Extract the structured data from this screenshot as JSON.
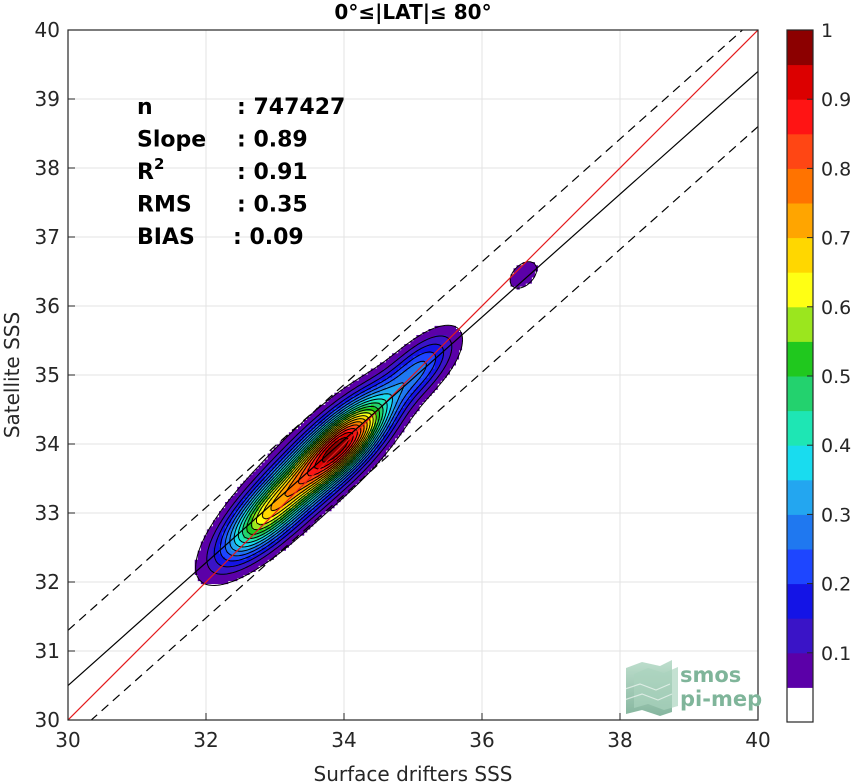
{
  "chart_data": {
    "type": "heatmap",
    "title": "0°≤|LAT|≤ 80°",
    "xlabel": "Surface drifters SSS",
    "ylabel": "Satellite SSS",
    "xlim": [
      30,
      40
    ],
    "ylim": [
      30,
      40
    ],
    "xticks": [
      30,
      32,
      34,
      36,
      38,
      40
    ],
    "yticks": [
      30,
      31,
      32,
      33,
      34,
      35,
      36,
      37,
      38,
      39,
      40
    ],
    "grid": true,
    "stats": [
      {
        "label": "n",
        "value": ": 747427"
      },
      {
        "label": "Slope",
        "value": ": 0.89"
      },
      {
        "label": "R",
        "superscript": "2",
        "value": ": 0.91"
      },
      {
        "label": "RMS",
        "value": ": 0.35"
      },
      {
        "label": "BIAS",
        "value": ": 0.09"
      }
    ],
    "lines": [
      {
        "kind": "one-to-one",
        "color": "#e41a1c",
        "slope": 1.0,
        "intercept": 0
      },
      {
        "kind": "regression",
        "color": "#000000",
        "slope": 0.89,
        "intercept": 3.8
      },
      {
        "kind": "confidence-upper",
        "color": "#000000",
        "dash": true,
        "slope": 0.89,
        "intercept": 4.6
      },
      {
        "kind": "confidence-lower",
        "color": "#000000",
        "dash": true,
        "slope": 0.89,
        "intercept": 3.0
      }
    ],
    "density_cores": [
      {
        "x": 33.5,
        "y": 33.6,
        "weight": 1.0
      },
      {
        "x": 34.05,
        "y": 34.05,
        "weight": 0.95
      },
      {
        "x": 32.8,
        "y": 32.9,
        "weight": 0.55
      },
      {
        "x": 35.1,
        "y": 35.1,
        "weight": 0.4
      },
      {
        "x": 36.6,
        "y": 36.45,
        "weight": 0.15
      }
    ],
    "colorbar": {
      "range": [
        0,
        1
      ],
      "ticks": [
        0.1,
        0.2,
        0.3,
        0.4,
        0.5,
        0.6,
        0.7,
        0.8,
        0.9,
        1
      ],
      "tick_labels": [
        "0.1",
        "0.2",
        "0.3",
        "0.4",
        "0.5",
        "0.6",
        "0.7",
        "0.8",
        "0.9",
        "1"
      ],
      "levels": 20,
      "colors": [
        "#ffffff",
        "#5b00a8",
        "#3a14c7",
        "#1414e6",
        "#1e46ff",
        "#1f78f0",
        "#23a6f0",
        "#19dcef",
        "#1ee6b4",
        "#23d26e",
        "#20c81e",
        "#9be61e",
        "#ffff14",
        "#ffd700",
        "#ffa500",
        "#ff7300",
        "#ff4614",
        "#ff1414",
        "#dc0000",
        "#8c0000"
      ]
    },
    "logo": {
      "line1": "smos",
      "line2": "pi-mep"
    }
  }
}
